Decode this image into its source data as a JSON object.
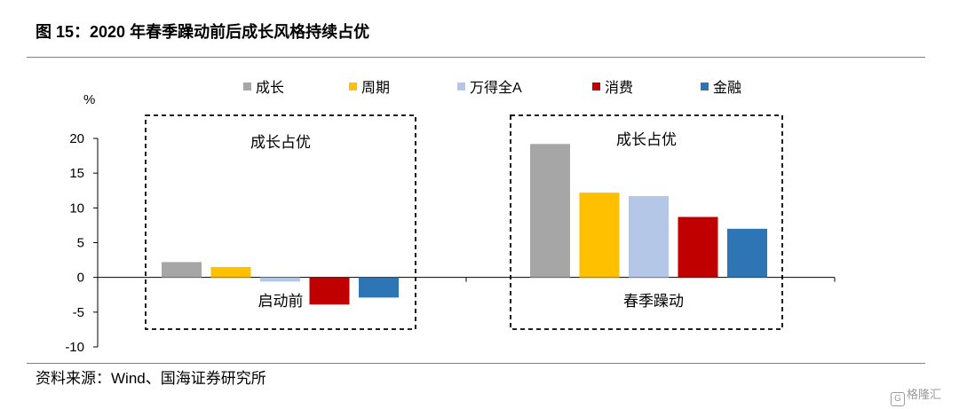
{
  "figure": {
    "title": "图 15：2020 年春季躁动前后成长风格持续占优",
    "source": "资料来源：Wind、国海证券研究所",
    "watermark": "格隆汇"
  },
  "chart_data": {
    "type": "bar",
    "ylabel": "%",
    "ylim": [
      -10,
      20
    ],
    "yticks": [
      20,
      15,
      10,
      5,
      0,
      -5,
      -10
    ],
    "grid": false,
    "legend_position": "top",
    "categories": [
      "启动前",
      "春季躁动"
    ],
    "series": [
      {
        "name": "成长",
        "color": "#a6a6a6",
        "values": [
          2.2,
          19.2
        ]
      },
      {
        "name": "周期",
        "color": "#ffc000",
        "values": [
          1.5,
          12.2
        ]
      },
      {
        "name": "万得全A",
        "color": "#b4c7e7",
        "values": [
          -0.6,
          11.7
        ]
      },
      {
        "name": "消费",
        "color": "#c00000",
        "values": [
          -3.9,
          8.7
        ]
      },
      {
        "name": "金融",
        "color": "#2e75b6",
        "values": [
          -2.9,
          7.0
        ]
      }
    ],
    "annotations": [
      "成长占优",
      "成长占优"
    ]
  }
}
